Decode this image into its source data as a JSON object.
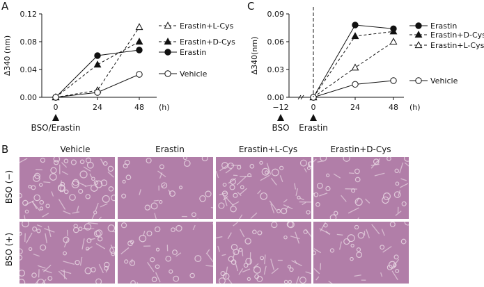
{
  "panels": {
    "A": {
      "letter": "A",
      "ylabel": "Δ340 (nm)",
      "xunit": "(h)",
      "arrow_label": "BSO/Erastin",
      "legend": [
        "Erastin+L-Cys",
        "Erastin+D-Cys",
        "Erastin",
        "Vehicle"
      ]
    },
    "B": {
      "letter": "B",
      "columns": [
        "Vehicle",
        "Erastin",
        "Erastin+L-Cys",
        "Erastin+D-Cys"
      ],
      "rows": [
        "BSO (−)",
        "BSO (+)"
      ]
    },
    "C": {
      "letter": "C",
      "ylabel": "Δ340(nm)",
      "xunit": "(h)",
      "arrow_labels": [
        "BSO",
        "Erastin"
      ],
      "legend": [
        "Erastin",
        "Erastin+D-Cys",
        "Erastin+L-Cys",
        "Vehicle"
      ]
    }
  },
  "colors": {
    "micrograph_background": "#b17ea8",
    "micrograph_cell": "#e8d6e2",
    "axis": "#111111"
  },
  "chart_data": [
    {
      "type": "line",
      "panel": "A",
      "x": [
        0,
        24,
        48
      ],
      "xticks": [
        "0",
        "24",
        "48"
      ],
      "ylim": [
        0,
        0.12
      ],
      "yticks": [
        "0.00",
        "0.04",
        "0.08",
        "0.12"
      ],
      "ylabel": "Δ340 (nm)",
      "series": [
        {
          "name": "Erastin+L-Cys",
          "values": [
            0.0,
            0.01,
            0.101
          ],
          "marker": "open-triangle",
          "dash": "dashed"
        },
        {
          "name": "Erastin+D-Cys",
          "values": [
            0.0,
            0.047,
            0.08
          ],
          "marker": "filled-triangle",
          "dash": "dashed"
        },
        {
          "name": "Erastin",
          "values": [
            0.0,
            0.06,
            0.068
          ],
          "marker": "filled-circle",
          "dash": "solid"
        },
        {
          "name": "Vehicle",
          "values": [
            0.0,
            0.007,
            0.033
          ],
          "marker": "open-circle",
          "dash": "solid"
        }
      ]
    },
    {
      "type": "line",
      "panel": "C",
      "x": [
        0,
        24,
        48
      ],
      "xticks": [
        "−12",
        "0",
        "24",
        "48"
      ],
      "ylim": [
        0,
        0.09
      ],
      "yticks": [
        "0.00",
        "0.03",
        "0.06",
        "0.09"
      ],
      "ylabel": "Δ340(nm)",
      "series": [
        {
          "name": "Erastin",
          "values": [
            0.0,
            0.078,
            0.074
          ],
          "marker": "filled-circle",
          "dash": "solid"
        },
        {
          "name": "Erastin+D-Cys",
          "values": [
            0.0,
            0.066,
            0.071
          ],
          "marker": "filled-triangle",
          "dash": "dashed"
        },
        {
          "name": "Erastin+L-Cys",
          "values": [
            0.0,
            0.032,
            0.06
          ],
          "marker": "open-triangle",
          "dash": "dashed"
        },
        {
          "name": "Vehicle",
          "values": [
            0.0,
            0.014,
            0.018
          ],
          "marker": "open-circle",
          "dash": "solid"
        }
      ]
    }
  ]
}
